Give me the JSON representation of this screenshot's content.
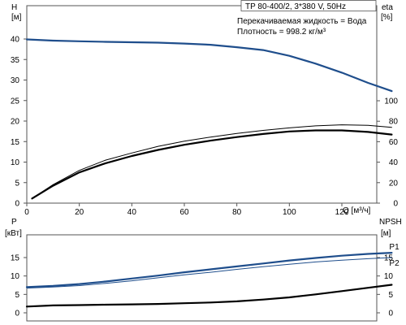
{
  "chart_data": [
    {
      "id": "performance",
      "type": "line",
      "title": "TP 80-400/2, 3*380 V, 50Hz",
      "info_lines": [
        "Перекачиваемая жидкость = Вода",
        "Плотность = 998.2 кг/м³"
      ],
      "xlabel": "Q [м³/ч]",
      "x_ticks": [
        0,
        20,
        40,
        60,
        80,
        100,
        120
      ],
      "xlim": [
        0,
        140
      ],
      "left_axis": {
        "label_line1": "H",
        "label_line2": "[м]",
        "ticks": [
          0,
          5,
          10,
          15,
          20,
          25,
          30,
          35,
          40
        ],
        "ylim": [
          0,
          45
        ]
      },
      "right_axis": {
        "label_line1": "eta",
        "label_line2": "[%]",
        "ticks": [
          0,
          20,
          40,
          60,
          80,
          100
        ],
        "ylim": [
          0,
          180
        ]
      },
      "grid": false,
      "colors": {
        "head": "#1f4e8c",
        "eta": "#000000"
      },
      "series": [
        {
          "axis": "left",
          "style": "thick-blue",
          "x": [
            0,
            10,
            20,
            30,
            40,
            50,
            60,
            70,
            80,
            90,
            100,
            110,
            120,
            130,
            139
          ],
          "y": [
            39.9,
            39.6,
            39.45,
            39.3,
            39.2,
            39.1,
            38.9,
            38.6,
            38.0,
            37.3,
            35.9,
            34.0,
            31.8,
            29.3,
            27.3
          ]
        },
        {
          "axis": "right",
          "style": "thick-black",
          "x": [
            2,
            10,
            20,
            30,
            40,
            50,
            60,
            70,
            80,
            90,
            100,
            110,
            120,
            130,
            139
          ],
          "y": [
            4.5,
            17,
            30,
            39,
            46,
            52,
            57,
            61,
            64.5,
            67.5,
            70,
            71,
            71,
            69.5,
            67
          ]
        },
        {
          "axis": "right",
          "style": "thin-black",
          "x": [
            2,
            10,
            20,
            30,
            40,
            50,
            60,
            70,
            80,
            90,
            100,
            110,
            120,
            130,
            139
          ],
          "y": [
            4.5,
            18,
            32,
            42,
            49,
            55.5,
            60.5,
            64.5,
            68,
            71,
            73.5,
            75.5,
            76.5,
            76,
            74
          ]
        }
      ]
    },
    {
      "id": "power-npsh",
      "type": "line",
      "xlim": [
        0,
        140
      ],
      "left_axis": {
        "label_line1": "P",
        "label_line2": "[кВт]",
        "ticks": [
          0,
          5,
          10,
          15
        ],
        "ylim": [
          0,
          20
        ]
      },
      "right_axis": {
        "label_line1": "NPSH",
        "label_line2": "[м]",
        "ticks": [
          0,
          5,
          10,
          15
        ],
        "ylim": [
          0,
          20
        ]
      },
      "grid": false,
      "colors": {
        "p1": "#1f4e8c",
        "p2": "#1f4e8c",
        "npsh": "#000000"
      },
      "series": [
        {
          "name": "P1",
          "axis": "left",
          "style": "thick-blue",
          "x": [
            0,
            10,
            20,
            30,
            40,
            50,
            60,
            70,
            80,
            90,
            100,
            110,
            120,
            130,
            139
          ],
          "y": [
            7.0,
            7.3,
            7.8,
            8.5,
            9.3,
            10.1,
            11.0,
            11.8,
            12.6,
            13.4,
            14.2,
            14.9,
            15.5,
            16.0,
            16.3
          ]
        },
        {
          "name": "P2",
          "axis": "left",
          "style": "thin-blue",
          "x": [
            0,
            10,
            20,
            30,
            40,
            50,
            60,
            70,
            80,
            90,
            100,
            110,
            120,
            130,
            139
          ],
          "y": [
            6.7,
            7.0,
            7.4,
            8.0,
            8.7,
            9.5,
            10.3,
            11.0,
            11.8,
            12.5,
            13.2,
            13.8,
            14.3,
            14.7,
            15.0
          ]
        },
        {
          "axis": "right",
          "style": "thick-black",
          "x": [
            0,
            10,
            20,
            30,
            40,
            50,
            60,
            70,
            80,
            90,
            100,
            110,
            120,
            130,
            139
          ],
          "y": [
            1.7,
            2.0,
            2.1,
            2.2,
            2.3,
            2.4,
            2.6,
            2.8,
            3.1,
            3.6,
            4.2,
            5.0,
            5.9,
            6.8,
            7.6
          ]
        }
      ]
    }
  ]
}
